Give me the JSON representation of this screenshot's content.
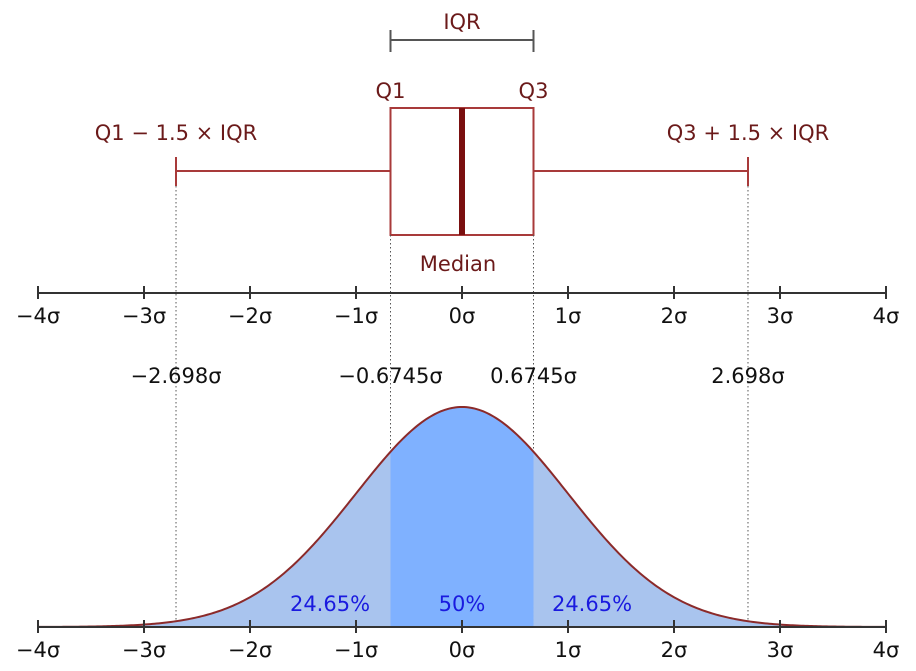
{
  "colors": {
    "boxplot": "#a83a3a",
    "median": "#7a0f0f",
    "label": "#6b1a1a",
    "axis": "#333333",
    "tail_fill": "#a9c4ee",
    "iqr_fill": "#7fb1ff",
    "curve": "#8b2a2a",
    "percent_text": "#1a1adf"
  },
  "boxplot": {
    "iqr_label": "IQR",
    "q1_label": "Q1",
    "q3_label": "Q3",
    "median_label": "Median",
    "lower_whisker_label": "Q1 − 1.5 × IQR",
    "upper_whisker_label": "Q3 + 1.5 × IQR",
    "values": {
      "lower_whisker": -2.698,
      "q1": -0.6745,
      "median": 0,
      "q3": 0.6745,
      "upper_whisker": 2.698
    }
  },
  "axis": {
    "range": [
      -4,
      4
    ],
    "ticks": [
      {
        "value": -4,
        "label": "−4σ"
      },
      {
        "value": -3,
        "label": "−3σ"
      },
      {
        "value": -2,
        "label": "−2σ"
      },
      {
        "value": -1,
        "label": "−1σ"
      },
      {
        "value": 0,
        "label": "0σ"
      },
      {
        "value": 1,
        "label": "1σ"
      },
      {
        "value": 2,
        "label": "2σ"
      },
      {
        "value": 3,
        "label": "3σ"
      },
      {
        "value": 4,
        "label": "4σ"
      }
    ]
  },
  "sigma_markers": [
    {
      "value": -2.698,
      "label": "−2.698σ"
    },
    {
      "value": -0.6745,
      "label": "−0.6745σ"
    },
    {
      "value": 0.6745,
      "label": "0.6745σ"
    },
    {
      "value": 2.698,
      "label": "2.698σ"
    }
  ],
  "distribution": {
    "type": "normal",
    "mean": 0,
    "sd": 1,
    "regions": [
      {
        "name": "left",
        "from": -4,
        "to": -0.6745,
        "label": "24.65%"
      },
      {
        "name": "center",
        "from": -0.6745,
        "to": 0.6745,
        "label": "50%"
      },
      {
        "name": "right",
        "from": 0.6745,
        "to": 4,
        "label": "24.65%"
      }
    ]
  }
}
